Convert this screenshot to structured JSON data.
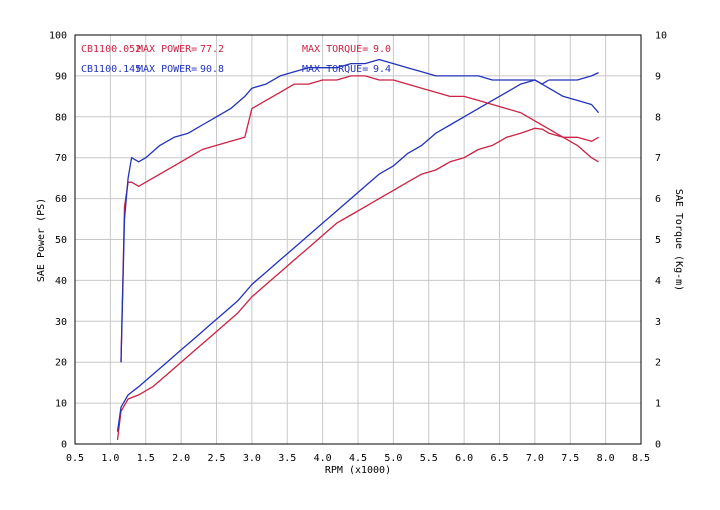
{
  "chart_data": {
    "type": "line",
    "xlabel": "RPM (x1000)",
    "ylabel_left": "SAE Power (PS)",
    "ylabel_right": "SAE Torque (Kg-m)",
    "xlim": [
      0.5,
      8.5
    ],
    "ylim_left": [
      0,
      100
    ],
    "ylim_right": [
      0,
      10
    ],
    "x_ticks": [
      "0.5",
      "1.0",
      "1.5",
      "2.0",
      "2.5",
      "3.0",
      "3.5",
      "4.0",
      "4.5",
      "5.0",
      "5.5",
      "6.0",
      "6.5",
      "7.0",
      "7.5",
      "8.0",
      "8.5"
    ],
    "y_left_ticks": [
      "0",
      "10",
      "20",
      "30",
      "40",
      "50",
      "60",
      "70",
      "80",
      "90",
      "100"
    ],
    "y_right_ticks": [
      "0",
      "1",
      "2",
      "3",
      "4",
      "5",
      "6",
      "7",
      "8",
      "9",
      "10"
    ],
    "grid": true,
    "legend": [
      {
        "run": "CB1100.052",
        "max_power_label": "MAX POWER=",
        "max_power_value": "77.2",
        "max_torque_label": "MAX TORQUE=",
        "max_torque_value": "9.0",
        "color": "#cc2244"
      },
      {
        "run": "CB1100.145",
        "max_power_label": "MAX POWER=",
        "max_power_value": "90.8",
        "max_torque_label": "MAX TORQUE=",
        "max_torque_value": "9.4",
        "color": "#2233bb"
      }
    ],
    "series": [
      {
        "name": "CB1100.052",
        "quantity": "power",
        "axis": "left",
        "color": "#cc2244",
        "x": [
          1.1,
          1.15,
          1.25,
          1.4,
          1.6,
          1.8,
          2.0,
          2.2,
          2.4,
          2.6,
          2.8,
          3.0,
          3.2,
          3.4,
          3.6,
          3.8,
          4.0,
          4.2,
          4.4,
          4.6,
          4.8,
          5.0,
          5.2,
          5.4,
          5.6,
          5.8,
          6.0,
          6.2,
          6.4,
          6.6,
          6.8,
          7.0,
          7.1,
          7.2,
          7.4,
          7.6,
          7.8,
          7.9
        ],
        "y": [
          1,
          8,
          11,
          12,
          14,
          17,
          20,
          23,
          26,
          29,
          32,
          36,
          39,
          42,
          45,
          48,
          51,
          54,
          56,
          58,
          60,
          62,
          64,
          66,
          67,
          69,
          70,
          72,
          73,
          75,
          76,
          77.2,
          77,
          76,
          75,
          75,
          74,
          75
        ]
      },
      {
        "name": "CB1100.145",
        "quantity": "power",
        "axis": "left",
        "color": "#2233bb",
        "x": [
          1.1,
          1.15,
          1.25,
          1.4,
          1.6,
          1.8,
          2.0,
          2.2,
          2.4,
          2.6,
          2.8,
          3.0,
          3.2,
          3.4,
          3.6,
          3.8,
          4.0,
          4.2,
          4.4,
          4.6,
          4.8,
          5.0,
          5.2,
          5.4,
          5.6,
          5.8,
          6.0,
          6.2,
          6.4,
          6.6,
          6.8,
          7.0,
          7.1,
          7.2,
          7.4,
          7.6,
          7.8,
          7.9
        ],
        "y": [
          3,
          9,
          12,
          14,
          17,
          20,
          23,
          26,
          29,
          32,
          35,
          39,
          42,
          45,
          48,
          51,
          54,
          57,
          60,
          63,
          66,
          68,
          71,
          73,
          76,
          78,
          80,
          82,
          84,
          86,
          88,
          89,
          88,
          89,
          89,
          89,
          90,
          90.8
        ]
      },
      {
        "name": "CB1100.052",
        "quantity": "torque",
        "axis": "right",
        "color": "#cc2244",
        "x": [
          1.15,
          1.2,
          1.25,
          1.3,
          1.4,
          1.5,
          1.7,
          1.9,
          2.1,
          2.3,
          2.5,
          2.7,
          2.9,
          3.0,
          3.2,
          3.4,
          3.6,
          3.8,
          4.0,
          4.2,
          4.4,
          4.6,
          4.8,
          5.0,
          5.2,
          5.4,
          5.6,
          5.8,
          6.0,
          6.2,
          6.4,
          6.6,
          6.8,
          7.0,
          7.2,
          7.4,
          7.6,
          7.8,
          7.9
        ],
        "y": [
          2.0,
          5.8,
          6.4,
          6.4,
          6.3,
          6.4,
          6.6,
          6.8,
          7.0,
          7.2,
          7.3,
          7.4,
          7.5,
          8.2,
          8.4,
          8.6,
          8.8,
          8.8,
          8.9,
          8.9,
          9.0,
          9.0,
          8.9,
          8.9,
          8.8,
          8.7,
          8.6,
          8.5,
          8.5,
          8.4,
          8.3,
          8.2,
          8.1,
          7.9,
          7.7,
          7.5,
          7.3,
          7.0,
          6.9
        ]
      },
      {
        "name": "CB1100.145",
        "quantity": "torque",
        "axis": "right",
        "color": "#2233bb",
        "x": [
          1.15,
          1.2,
          1.25,
          1.3,
          1.4,
          1.5,
          1.7,
          1.9,
          2.1,
          2.3,
          2.5,
          2.7,
          2.9,
          3.0,
          3.2,
          3.4,
          3.6,
          3.8,
          4.0,
          4.2,
          4.4,
          4.6,
          4.8,
          5.0,
          5.2,
          5.4,
          5.6,
          5.8,
          6.0,
          6.2,
          6.4,
          6.6,
          6.8,
          7.0,
          7.2,
          7.4,
          7.6,
          7.8,
          7.9
        ],
        "y": [
          2.0,
          5.5,
          6.5,
          7.0,
          6.9,
          7.0,
          7.3,
          7.5,
          7.6,
          7.8,
          8.0,
          8.2,
          8.5,
          8.7,
          8.8,
          9.0,
          9.1,
          9.2,
          9.2,
          9.2,
          9.3,
          9.3,
          9.4,
          9.3,
          9.2,
          9.1,
          9.0,
          9.0,
          9.0,
          9.0,
          8.9,
          8.9,
          8.9,
          8.9,
          8.7,
          8.5,
          8.4,
          8.3,
          8.1
        ]
      }
    ]
  }
}
